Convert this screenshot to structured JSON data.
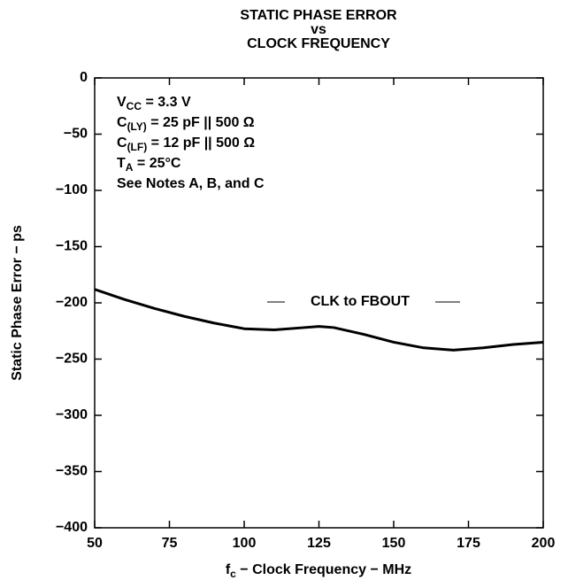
{
  "chart_data": {
    "type": "line",
    "title": [
      "STATIC PHASE ERROR",
      "vs",
      "CLOCK FREQUENCY"
    ],
    "xlabel": [
      {
        "text": "f"
      },
      {
        "text": "c",
        "sub": true
      },
      {
        "text": " − Clock Frequency − MHz"
      }
    ],
    "ylabel": "Static Phase Error − ps",
    "annotations": [
      [
        {
          "text": "V"
        },
        {
          "text": "CC",
          "sub": true
        },
        {
          "text": " = 3.3 V"
        }
      ],
      [
        {
          "text": "C"
        },
        {
          "text": "(LY)",
          "sub": true
        },
        {
          "text": " = 25 pF || 500 Ω"
        }
      ],
      [
        {
          "text": "C"
        },
        {
          "text": "(LF)",
          "sub": true
        },
        {
          "text": " = 12 pF || 500 Ω"
        }
      ],
      [
        {
          "text": "T"
        },
        {
          "text": "A",
          "sub": true
        },
        {
          "text": " = 25°C"
        }
      ],
      [
        {
          "text": "See Notes A, B, and C"
        }
      ]
    ],
    "x": [
      50,
      60,
      70,
      80,
      90,
      100,
      110,
      120,
      125,
      130,
      140,
      150,
      160,
      170,
      180,
      190,
      200
    ],
    "series": [
      {
        "name": "CLK to FBOUT",
        "color": "#000000",
        "values": [
          -188,
          -197,
          -205,
          -212,
          -218,
          -223,
          -224,
          -222,
          -221,
          -222,
          -228,
          -235,
          -240,
          -242,
          -240,
          -237,
          -235
        ]
      }
    ],
    "xlim": [
      50,
      200
    ],
    "xticks": [
      50,
      75,
      100,
      125,
      150,
      175,
      200
    ],
    "ylim": [
      -400,
      0
    ],
    "yticks": [
      0,
      {
        "value": -50,
        "label": "−50"
      },
      {
        "value": -100,
        "label": "−100"
      },
      {
        "value": -150,
        "label": "−150"
      },
      {
        "value": -200,
        "label": "−200"
      },
      {
        "value": -250,
        "label": "−250"
      },
      {
        "value": -300,
        "label": "−300"
      },
      {
        "value": -350,
        "label": "−350"
      },
      {
        "value": -400,
        "label": "−400"
      }
    ],
    "grid": false
  }
}
